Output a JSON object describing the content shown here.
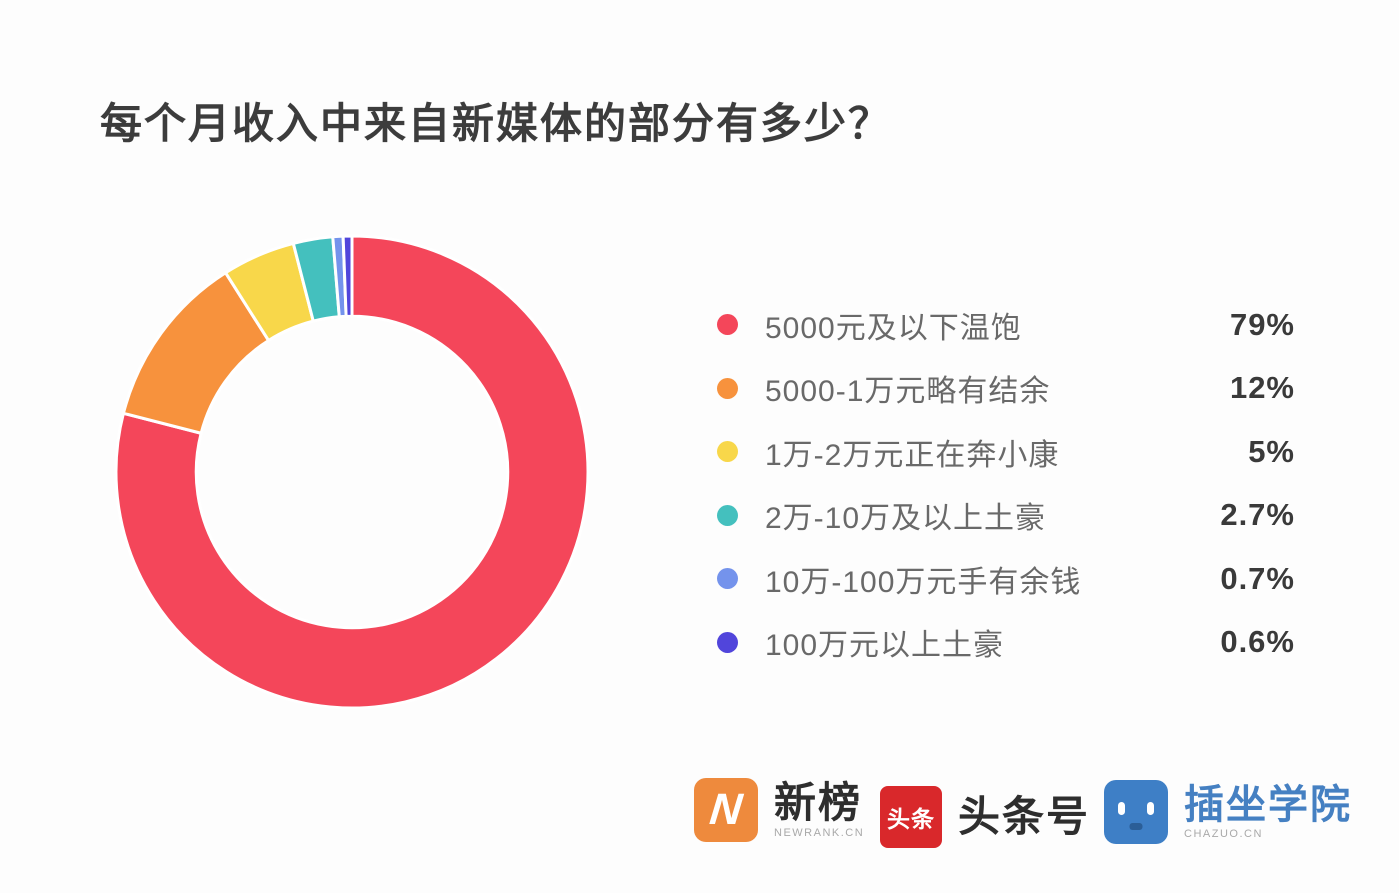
{
  "title": "每个月收入中来自新媒体的部分有多少？",
  "chart_data": {
    "type": "pie",
    "subtype": "donut",
    "title": "每个月收入中来自新媒体的部分有多少？",
    "categories": [
      "5000元及以下温饱",
      "5000-1万元略有结余",
      "1万-2万元正在奔小康",
      "2万-10万及以上土豪",
      "10万-100万元手有余钱",
      "100万元以上土豪"
    ],
    "values": [
      79,
      12,
      5,
      2.7,
      0.7,
      0.6
    ],
    "value_labels": [
      "79%",
      "12%",
      "5%",
      "2.7%",
      "0.7%",
      "0.6%"
    ],
    "colors": [
      "#F4465A",
      "#F7923D",
      "#F8D74A",
      "#44C0BE",
      "#7493EC",
      "#5145DB"
    ],
    "start_angle_deg": -90,
    "direction": "clockwise",
    "inner_radius_ratio": 0.66,
    "segment_gap_color": "#FFFFFF",
    "legend_position": "right",
    "grid": false
  },
  "footer": {
    "logos": [
      {
        "name": "新榜",
        "sub": "NEWRANK.CN",
        "icon": "N",
        "brand_color": "#EE8A3D"
      },
      {
        "name": "头条号",
        "icon_text": "头条",
        "brand_color": "#D9282B"
      },
      {
        "name": "插坐学院",
        "sub": "CHAZUO.CN",
        "brand_color": "#3E7FC6"
      }
    ]
  }
}
